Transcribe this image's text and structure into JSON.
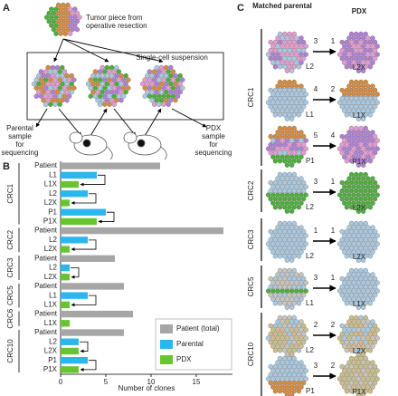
{
  "panel_labels": [
    "A",
    "B",
    "C"
  ],
  "panel_a": {
    "tumor_text": [
      "Tumor piece from",
      "operative resection"
    ],
    "box_title": "Single-cell suspension",
    "parental_text": [
      "Parental",
      "sample",
      "for",
      "sequencing"
    ],
    "pdx_text": [
      "PDX",
      "sample",
      "for",
      "sequencing"
    ]
  },
  "chart_data": {
    "type": "bar",
    "orientation": "horizontal",
    "groups": [
      {
        "name": "CRC1",
        "categories": [
          "Patient",
          "L1",
          "L1X",
          "L2",
          "L2X",
          "P1",
          "P1X"
        ]
      },
      {
        "name": "CRC2",
        "categories": [
          "Patient",
          "L2",
          "L2X"
        ]
      },
      {
        "name": "CRC3",
        "categories": [
          "Patient",
          "L2",
          "L2X"
        ]
      },
      {
        "name": "CRC5",
        "categories": [
          "Patient",
          "L1",
          "L1X"
        ]
      },
      {
        "name": "CRC6",
        "categories": [
          "Patient",
          "L1X"
        ]
      },
      {
        "name": "CRC10",
        "categories": [
          "Patient",
          "L2",
          "L2X",
          "P1",
          "P1X"
        ]
      }
    ],
    "series": [
      {
        "name": "Patient (total)",
        "color": "#a6a6a6",
        "values": [
          11,
          null,
          null,
          null,
          null,
          null,
          null,
          18,
          null,
          null,
          6,
          null,
          null,
          7,
          null,
          null,
          8,
          null,
          7,
          null,
          null,
          null,
          null
        ]
      },
      {
        "name": "Parental",
        "color": "#2ab7ee",
        "values": [
          null,
          4,
          null,
          3,
          null,
          5,
          null,
          null,
          3,
          null,
          null,
          1,
          null,
          null,
          3,
          null,
          null,
          null,
          null,
          2,
          null,
          3,
          null
        ]
      },
      {
        "name": "PDX",
        "color": "#66c531",
        "values": [
          null,
          null,
          2,
          null,
          1,
          null,
          4,
          null,
          null,
          1,
          null,
          null,
          1,
          null,
          null,
          1,
          null,
          1,
          null,
          null,
          2,
          null,
          2
        ]
      }
    ],
    "xlabel": "Number of clones",
    "xlim": [
      0,
      19
    ],
    "xticks": [
      0,
      5,
      10,
      15
    ],
    "legend": "lower right"
  },
  "panel_c": {
    "headers": [
      "Matched parental",
      "PDX"
    ],
    "groups": [
      {
        "name": "CRC1",
        "rows": [
          {
            "parental": "L2",
            "parental_clones": 3,
            "pdx": "L2X",
            "pdx_clones": 1
          },
          {
            "parental": "L1",
            "parental_clones": 4,
            "pdx": "L1X",
            "pdx_clones": 2
          },
          {
            "parental": "P1",
            "parental_clones": 5,
            "pdx": "P1X",
            "pdx_clones": 4
          }
        ]
      },
      {
        "name": "CRC2",
        "rows": [
          {
            "parental": "L2",
            "parental_clones": 3,
            "pdx": "L2X",
            "pdx_clones": 1
          }
        ]
      },
      {
        "name": "CRC3",
        "rows": [
          {
            "parental": "L2",
            "parental_clones": 1,
            "pdx": "L2X",
            "pdx_clones": 1
          }
        ]
      },
      {
        "name": "CRC5",
        "rows": [
          {
            "parental": "L1",
            "parental_clones": 3,
            "pdx": "L1X",
            "pdx_clones": 1
          }
        ]
      },
      {
        "name": "CRC10",
        "rows": [
          {
            "parental": "L2",
            "parental_clones": 2,
            "pdx": "L2X",
            "pdx_clones": 2
          },
          {
            "parental": "P1",
            "parental_clones": 3,
            "pdx": "P1X",
            "pdx_clones": 2
          }
        ]
      }
    ]
  }
}
